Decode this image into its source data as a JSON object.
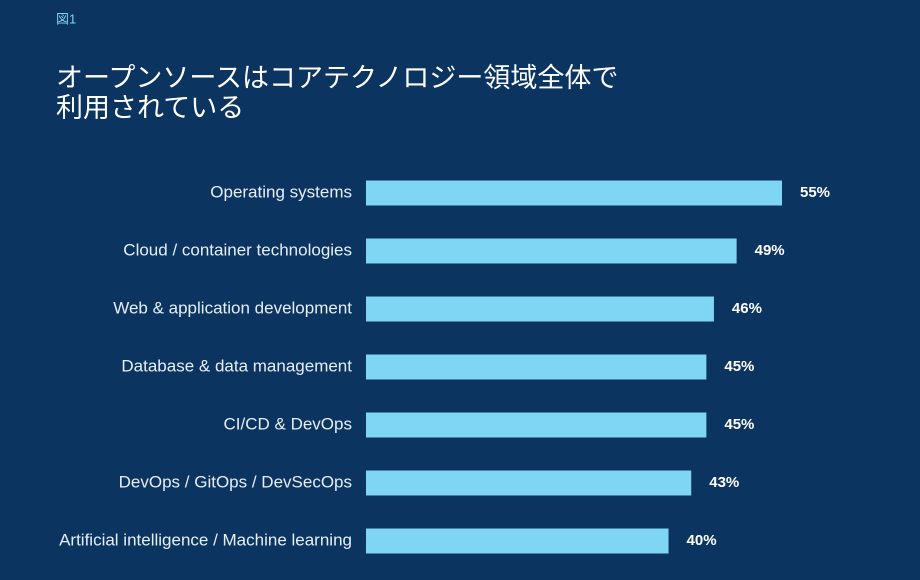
{
  "chart_data": {
    "type": "bar",
    "orientation": "horizontal",
    "figure_label": "図1",
    "title": [
      "オープンソースはコアテクノロジー領域全体で",
      "利用されている"
    ],
    "categories": [
      "Operating systems",
      "Cloud / container technologies",
      "Web & application development",
      "Database & data management",
      "CI/CD & DevOps",
      "DevOps / GitOps / DevSecOps",
      "Artificial intelligence / Machine learning"
    ],
    "values": [
      55,
      49,
      46,
      45,
      45,
      43,
      40
    ],
    "value_labels": [
      "55%",
      "49%",
      "46%",
      "45%",
      "45%",
      "43%",
      "40%"
    ],
    "color": "#7fd5f4"
  }
}
